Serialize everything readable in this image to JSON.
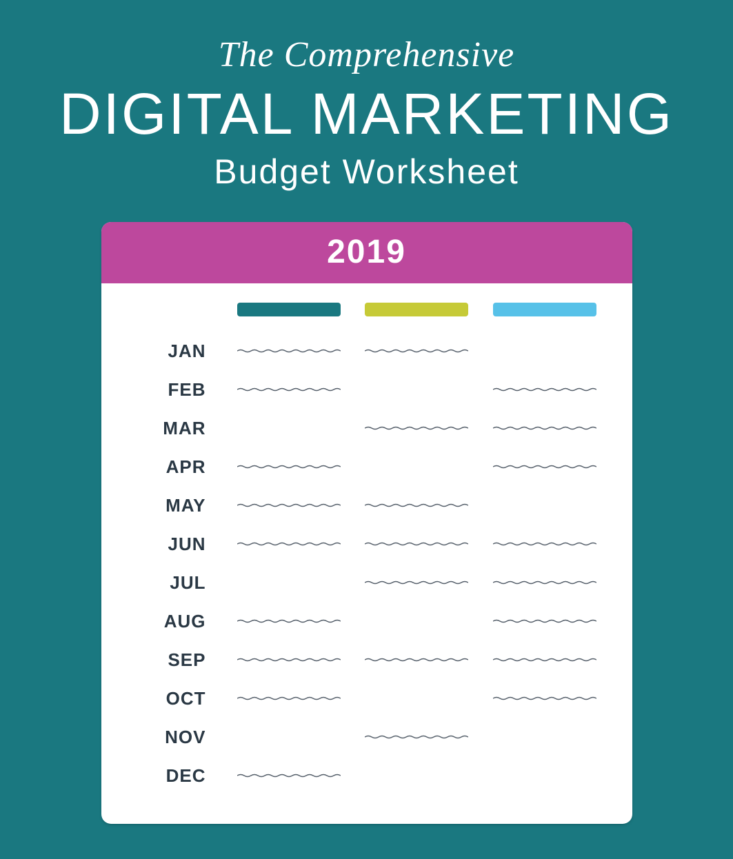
{
  "title": {
    "line1": "The Comprehensive",
    "line2": "DIGITAL MARKETING",
    "line3": "Budget Worksheet"
  },
  "worksheet": {
    "year": "2019",
    "header_bg_color": "#bd489d",
    "background_color": "#1a7880",
    "card_bg_color": "#ffffff",
    "text_color": "#2a3844",
    "squiggle_color": "#555f6a",
    "columns": [
      {
        "color": "#1a7880"
      },
      {
        "color": "#c6ca37"
      },
      {
        "color": "#57c1e8"
      }
    ],
    "rows": [
      {
        "label": "JAN",
        "cells": [
          true,
          true,
          false
        ]
      },
      {
        "label": "FEB",
        "cells": [
          true,
          false,
          true
        ]
      },
      {
        "label": "MAR",
        "cells": [
          false,
          true,
          true
        ]
      },
      {
        "label": "APR",
        "cells": [
          true,
          false,
          true
        ]
      },
      {
        "label": "MAY",
        "cells": [
          true,
          true,
          false
        ]
      },
      {
        "label": "JUN",
        "cells": [
          true,
          true,
          true
        ]
      },
      {
        "label": "JUL",
        "cells": [
          false,
          true,
          true
        ]
      },
      {
        "label": "AUG",
        "cells": [
          true,
          false,
          true
        ]
      },
      {
        "label": "SEP",
        "cells": [
          true,
          true,
          true
        ]
      },
      {
        "label": "OCT",
        "cells": [
          true,
          false,
          true
        ]
      },
      {
        "label": "NOV",
        "cells": [
          false,
          true,
          false
        ]
      },
      {
        "label": "DEC",
        "cells": [
          true,
          false,
          false
        ]
      }
    ]
  }
}
